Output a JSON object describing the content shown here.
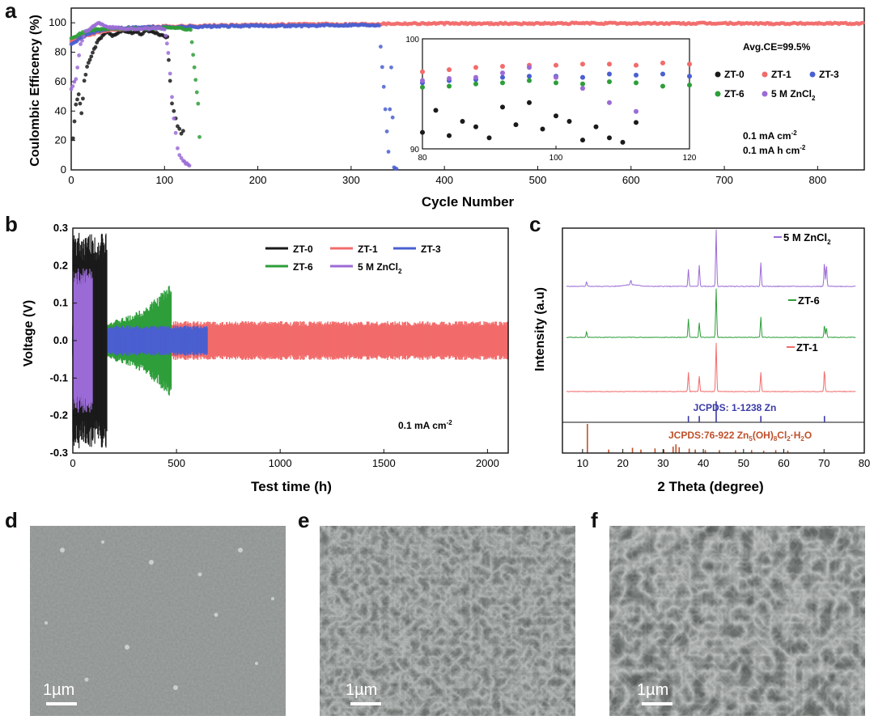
{
  "panels": {
    "a": "a",
    "b": "b",
    "c": "c",
    "d": "d",
    "e": "e",
    "f": "f"
  },
  "colors": {
    "ZT-0": "#1a1a1a",
    "ZT-1": "#f26b6b",
    "ZT-3": "#4a5fd0",
    "ZT-6": "#2e9e3a",
    "5 M ZnCl2": "#9b6bd6",
    "jcpds_zn": "#3a3aa8",
    "jcpds_hydroxide": "#c0502a"
  },
  "chart_data": [
    {
      "id": "a",
      "type": "scatter",
      "xlabel": "Cycle Number",
      "ylabel": "Coulombic Efficency (%)",
      "xlim": [
        0,
        850
      ],
      "ylim": [
        0,
        110
      ],
      "xticks": [
        "0",
        "100",
        "200",
        "300",
        "400",
        "500",
        "600",
        "700",
        "800"
      ],
      "yticks": [
        "0",
        "20",
        "40",
        "60",
        "80",
        "100"
      ],
      "annotations": {
        "avg": "Avg.CE=99.5%",
        "cond1": "0.1 mA cm",
        "cond1_sup": "-2",
        "cond2": "0.1 mA h cm",
        "cond2_sup": "-2"
      },
      "legend": {
        "placement": "right",
        "items": [
          {
            "label": "ZT-0",
            "sub": ""
          },
          {
            "label": "ZT-1",
            "sub": ""
          },
          {
            "label": "ZT-3",
            "sub": ""
          },
          {
            "label": "ZT-6",
            "sub": ""
          },
          {
            "label": "5 M ZnCl",
            "sub": "2"
          }
        ]
      },
      "series": [
        {
          "name": "ZT-0",
          "x": [
            2,
            5,
            8,
            11,
            14,
            17,
            20,
            23,
            26,
            29,
            32,
            35,
            38,
            41,
            44,
            47,
            50,
            55,
            60,
            65,
            70,
            75,
            80,
            85,
            90,
            95,
            100,
            103,
            106,
            108,
            110,
            112,
            114,
            116,
            118,
            120,
            122
          ],
          "y": [
            22,
            45,
            52,
            38,
            60,
            70,
            75,
            80,
            84,
            88,
            90,
            92,
            94,
            93,
            91,
            92,
            93,
            95,
            94,
            93,
            94,
            92,
            95,
            94,
            93,
            92,
            91,
            90,
            60,
            45,
            40,
            35,
            30,
            28,
            25,
            27,
            24
          ]
        },
        {
          "name": "ZT-1",
          "x": [
            0,
            20,
            40,
            60,
            80,
            100,
            150,
            200,
            250,
            300,
            350,
            400,
            450,
            500,
            550,
            600,
            650,
            700,
            750,
            800,
            850
          ],
          "y": [
            88,
            92,
            95,
            96,
            97,
            97.5,
            98,
            98.5,
            99,
            99,
            99.5,
            99.5,
            99.5,
            99.5,
            99.6,
            99.6,
            99.5,
            99.6,
            99.5,
            99.6,
            99.5
          ]
        },
        {
          "name": "ZT-3",
          "x": [
            0,
            20,
            40,
            60,
            80,
            100,
            150,
            200,
            250,
            300,
            330,
            335,
            340,
            343,
            346,
            350
          ],
          "y": [
            86,
            93,
            96,
            96.5,
            97,
            97,
            97.5,
            98,
            98,
            98.5,
            98.5,
            56,
            12,
            70,
            2,
            0
          ]
        },
        {
          "name": "ZT-6",
          "x": [
            0,
            20,
            40,
            60,
            80,
            100,
            110,
            120,
            128,
            132,
            136,
            139
          ],
          "y": [
            90,
            95,
            96,
            96,
            96,
            96.5,
            97,
            96,
            95,
            70,
            45,
            0
          ]
        },
        {
          "name": "5 M ZnCl2",
          "x": [
            0,
            5,
            10,
            15,
            20,
            25,
            30,
            40,
            60,
            80,
            100,
            104,
            106,
            108,
            110,
            112,
            114,
            116,
            118,
            120,
            124,
            128
          ],
          "y": [
            55,
            62,
            85,
            94,
            96,
            98,
            100,
            97,
            96,
            96,
            96,
            80,
            65,
            50,
            35,
            25,
            15,
            10,
            8,
            6,
            4,
            2
          ]
        }
      ]
    },
    {
      "id": "a-inset",
      "type": "scatter",
      "xlim": [
        80,
        120
      ],
      "ylim": [
        90,
        100
      ],
      "xticks": [
        "80",
        "100",
        "120"
      ],
      "yticks": [
        "90",
        "100"
      ],
      "series": [
        {
          "name": "ZT-0",
          "x": [
            80,
            82,
            84,
            86,
            88,
            90,
            92,
            94,
            96,
            98,
            100,
            102,
            104,
            106,
            108,
            110,
            112
          ],
          "y": [
            91.5,
            93.5,
            91.2,
            92.5,
            92.0,
            91.0,
            93.8,
            92.2,
            94.2,
            91.8,
            93.0,
            92.5,
            90.8,
            92.0,
            91.0,
            90.6,
            92.4
          ]
        },
        {
          "name": "ZT-1",
          "x": [
            80,
            84,
            88,
            92,
            96,
            100,
            104,
            108,
            112,
            116,
            120
          ],
          "y": [
            97.0,
            97.2,
            97.4,
            97.5,
            97.6,
            97.6,
            97.7,
            97.7,
            97.6,
            97.8,
            97.7
          ]
        },
        {
          "name": "ZT-3",
          "x": [
            80,
            84,
            88,
            92,
            96,
            100,
            104,
            108,
            112,
            116,
            120
          ],
          "y": [
            96.0,
            96.2,
            96.3,
            96.5,
            96.6,
            96.6,
            96.5,
            96.8,
            96.7,
            96.8,
            96.6
          ]
        },
        {
          "name": "ZT-6",
          "x": [
            80,
            84,
            88,
            92,
            96,
            100,
            104,
            108,
            112,
            116,
            120
          ],
          "y": [
            95.6,
            95.7,
            95.9,
            96.0,
            96.2,
            96.0,
            95.9,
            96.1,
            96.0,
            95.7,
            95.8
          ]
        },
        {
          "name": "5 M ZnCl2",
          "x": [
            80,
            84,
            88,
            92,
            96,
            100,
            104,
            108,
            112
          ],
          "y": [
            96.2,
            96.4,
            96.5,
            96.9,
            97.4,
            96.5,
            95.5,
            94.2,
            93.4
          ]
        }
      ]
    },
    {
      "id": "b",
      "type": "area",
      "xlabel": "Test time (h)",
      "ylabel": "Voltage (V)",
      "xlim": [
        0,
        2100
      ],
      "ylim": [
        -0.3,
        0.3
      ],
      "xticks": [
        "0",
        "500",
        "1000",
        "1500",
        "2000"
      ],
      "yticks": [
        "-0.3",
        "-0.2",
        "-0.1",
        "0.0",
        "0.1",
        "0.2",
        "0.3"
      ],
      "annotation": "0.1 mA cm",
      "annotation_sup": "-2",
      "legend": {
        "placement": "top-right",
        "items": [
          {
            "label": "ZT-0",
            "sub": ""
          },
          {
            "label": "ZT-1",
            "sub": ""
          },
          {
            "label": "ZT-3",
            "sub": ""
          },
          {
            "label": "ZT-6",
            "sub": ""
          },
          {
            "label": "5 M ZnCl",
            "sub": "2"
          }
        ]
      },
      "series": [
        {
          "name": "ZT-1",
          "x_range": [
            0,
            2100
          ],
          "amplitude": 0.045
        },
        {
          "name": "ZT-6",
          "x_range": [
            0,
            475
          ],
          "amplitude_start": 0.04,
          "amplitude_end": 0.14
        },
        {
          "name": "ZT-3",
          "x_range": [
            0,
            650
          ],
          "amplitude": 0.035
        },
        {
          "name": "ZT-0",
          "x_range": [
            0,
            165
          ],
          "amplitude": 0.25
        },
        {
          "name": "5 M ZnCl2",
          "x_range": [
            0,
            95
          ],
          "amplitude": 0.17
        }
      ]
    },
    {
      "id": "c",
      "type": "line",
      "xlabel": "2 Theta (degree)",
      "ylabel": "Intensity (a.u)",
      "xlim": [
        5,
        80
      ],
      "xticks": [
        "10",
        "20",
        "30",
        "40",
        "50",
        "60",
        "70",
        "80"
      ],
      "series": [
        {
          "name": "5 M ZnCl2",
          "label": "5 M ZnCl",
          "sub": "2",
          "peaks": [
            [
              11.0,
              0.08
            ],
            [
              22.0,
              0.08
            ],
            [
              36.3,
              0.3
            ],
            [
              39.0,
              0.38
            ],
            [
              43.2,
              1.0
            ],
            [
              54.3,
              0.42
            ],
            [
              70.1,
              0.42
            ],
            [
              70.6,
              0.38
            ]
          ]
        },
        {
          "name": "ZT-6",
          "label": "ZT-6",
          "sub": "",
          "peaks": [
            [
              11.0,
              0.12
            ],
            [
              36.3,
              0.38
            ],
            [
              39.0,
              0.3
            ],
            [
              43.2,
              1.0
            ],
            [
              54.3,
              0.42
            ],
            [
              70.1,
              0.25
            ],
            [
              70.6,
              0.2
            ]
          ]
        },
        {
          "name": "ZT-1",
          "label": "ZT-1",
          "sub": "",
          "peaks": [
            [
              36.3,
              0.4
            ],
            [
              39.0,
              0.32
            ],
            [
              43.2,
              1.0
            ],
            [
              54.3,
              0.4
            ],
            [
              70.1,
              0.45
            ]
          ]
        }
      ],
      "references": [
        {
          "name": "jcpds_zn",
          "label": "JCPDS: 1-1238 Zn",
          "sticks": [
            [
              36.3,
              0.3
            ],
            [
              39.0,
              0.3
            ],
            [
              43.2,
              1.0
            ],
            [
              54.3,
              0.3
            ],
            [
              70.1,
              0.3
            ]
          ]
        },
        {
          "name": "jcpds_hydroxide",
          "label": "JCPDS:76-922 Zn",
          "label_rest": [
            "5",
            "(OH)",
            "8",
            "Cl",
            "2",
            "·H",
            "2",
            "O"
          ],
          "sticks": [
            [
              11.2,
              1.0
            ],
            [
              16.5,
              0.12
            ],
            [
              22.4,
              0.18
            ],
            [
              24.5,
              0.12
            ],
            [
              28.0,
              0.16
            ],
            [
              30.2,
              0.12
            ],
            [
              32.5,
              0.22
            ],
            [
              33.2,
              0.3
            ],
            [
              34.0,
              0.2
            ],
            [
              36.5,
              0.15
            ],
            [
              38.0,
              0.12
            ],
            [
              40.5,
              0.1
            ],
            [
              44.0,
              0.1
            ],
            [
              48.0,
              0.1
            ],
            [
              52.0,
              0.1
            ],
            [
              55.0,
              0.08
            ],
            [
              58.0,
              0.1
            ],
            [
              61.0,
              0.08
            ]
          ]
        }
      ]
    }
  ],
  "sem": [
    {
      "id": "d",
      "scale": "1µm"
    },
    {
      "id": "e",
      "scale": "1µm"
    },
    {
      "id": "f",
      "scale": "1µm"
    }
  ]
}
